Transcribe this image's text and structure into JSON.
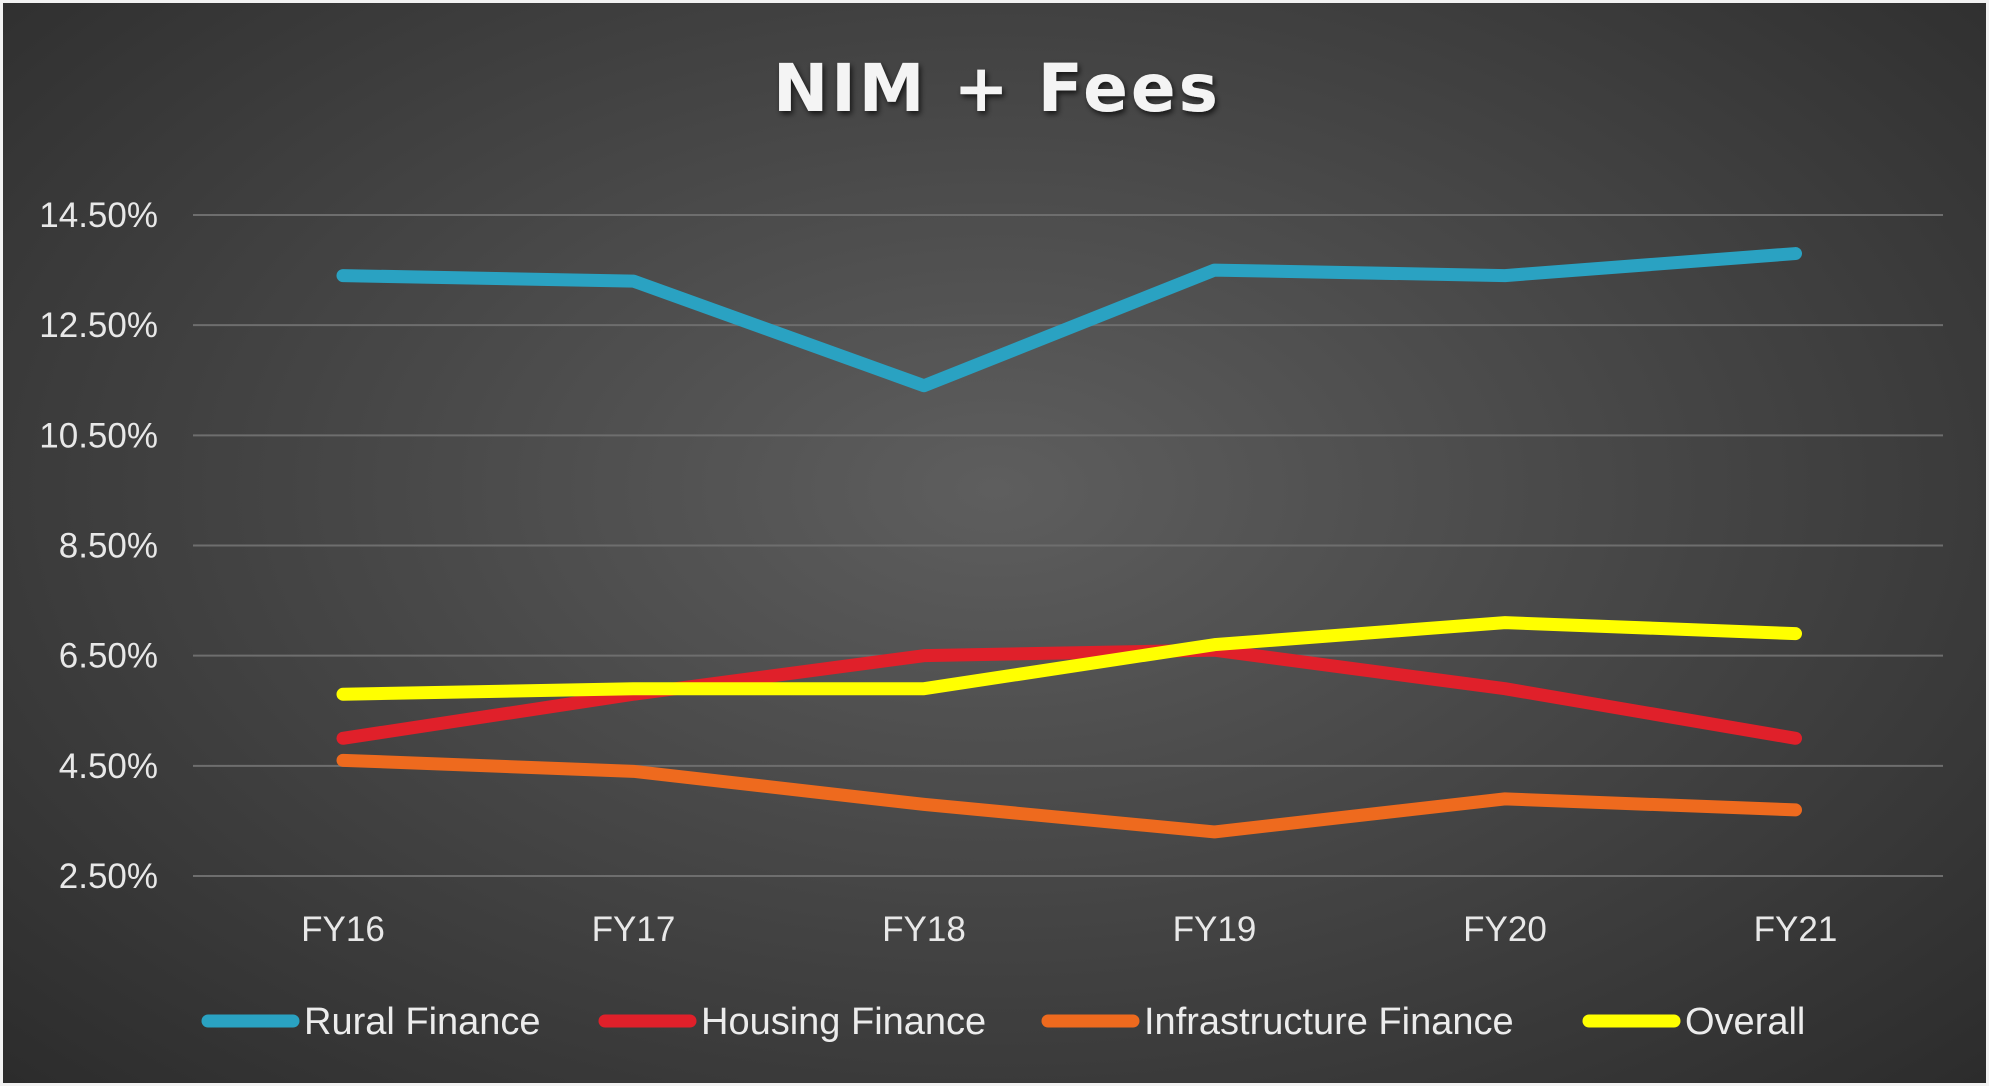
{
  "chart_data": {
    "type": "line",
    "title": "NIM + Fees",
    "xlabel": "",
    "ylabel": "",
    "categories": [
      "FY16",
      "FY17",
      "FY18",
      "FY19",
      "FY20",
      "FY21"
    ],
    "ylim": [
      2.5,
      14.5
    ],
    "yticks": [
      {
        "value": 14.5,
        "label": "14.50%"
      },
      {
        "value": 12.5,
        "label": "12.50%"
      },
      {
        "value": 10.5,
        "label": "10.50%"
      },
      {
        "value": 8.5,
        "label": "8.50%"
      },
      {
        "value": 6.5,
        "label": "6.50%"
      },
      {
        "value": 4.5,
        "label": "4.50%"
      },
      {
        "value": 2.5,
        "label": "2.50%"
      }
    ],
    "grid": true,
    "legend_position": "bottom",
    "series": [
      {
        "name": "Rural Finance",
        "color": "#2aa2c2",
        "values": [
          13.4,
          13.3,
          11.4,
          13.5,
          13.4,
          13.8
        ]
      },
      {
        "name": "Housing Finance",
        "color": "#e0202a",
        "values": [
          5.0,
          5.8,
          6.5,
          6.6,
          5.9,
          5.0
        ]
      },
      {
        "name": "Infrastructure Finance",
        "color": "#ee6a1e",
        "values": [
          4.6,
          4.4,
          3.8,
          3.3,
          3.9,
          3.7
        ]
      },
      {
        "name": "Overall",
        "color": "#ffff00",
        "values": [
          5.8,
          5.9,
          5.9,
          6.7,
          7.1,
          6.9
        ]
      }
    ]
  }
}
